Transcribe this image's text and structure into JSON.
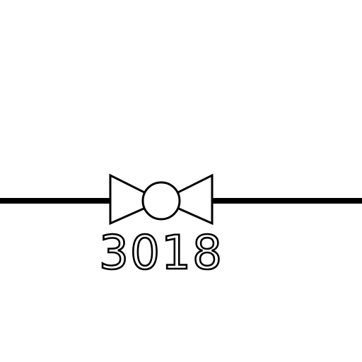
{
  "diagram": {
    "type": "piping-valve-symbol",
    "symbol": "ball-valve",
    "tag": "3018",
    "colors": {
      "background": "#ffffff",
      "line": "#000000"
    }
  }
}
